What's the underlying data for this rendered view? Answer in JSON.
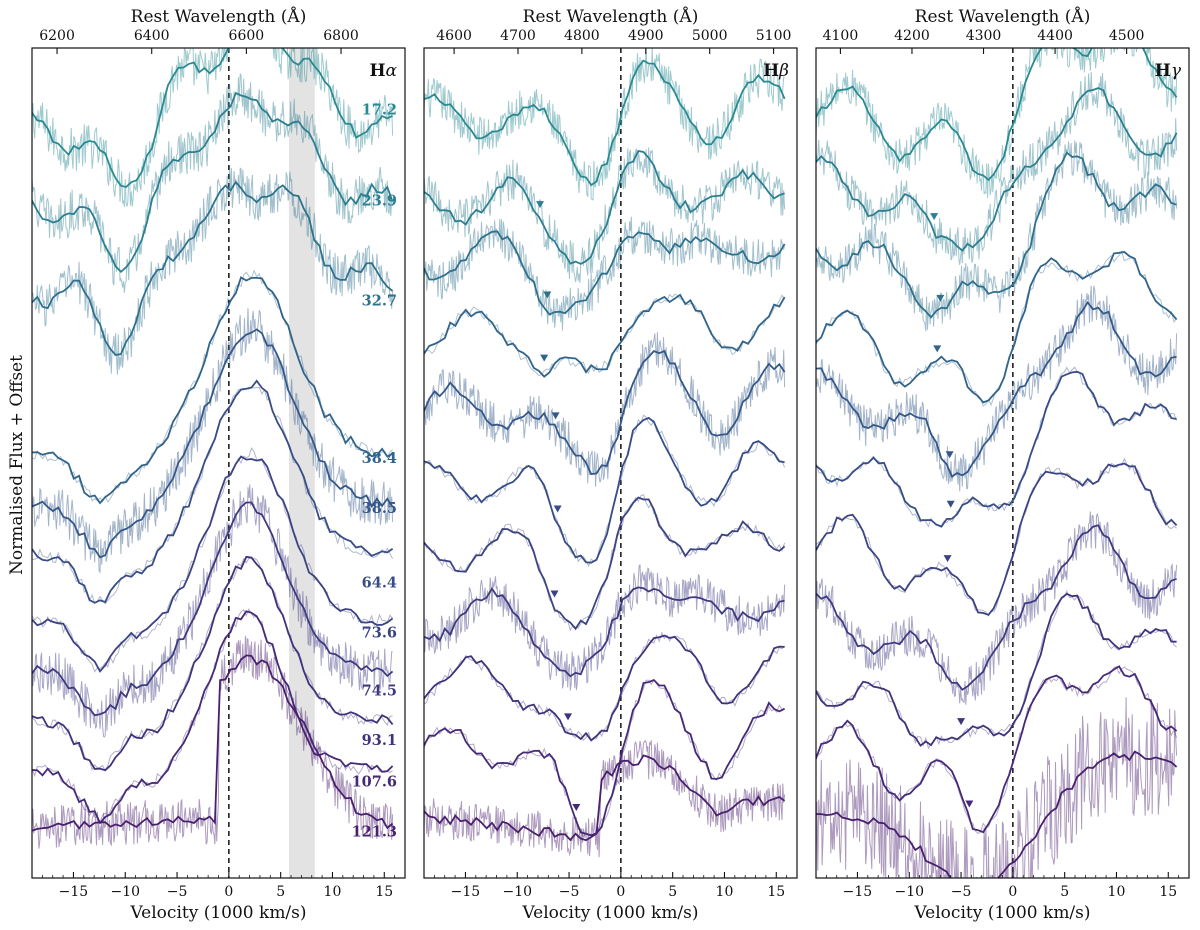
{
  "chart_data": {
    "type": "line",
    "ylabel": "Normalised Flux + Offset",
    "xlabel": "Velocity (1000 km/s)",
    "top_xlabel": "Rest Wavelength (Å)",
    "epochs": [
      "17.2",
      "23.9",
      "32.7",
      "38.4",
      "38.5",
      "64.4",
      "73.6",
      "74.5",
      "93.1",
      "107.6",
      "121.3"
    ],
    "epoch_colors": [
      "#2a8a92",
      "#2c7f90",
      "#2e718d",
      "#31648b",
      "#345889",
      "#374d86",
      "#3b4383",
      "#3f3a80",
      "#41327c",
      "#452a77",
      "#4a1f6e"
    ],
    "panels": [
      {
        "name": "Hα",
        "line": "H",
        "greek": "α",
        "xlim": [
          -19,
          17
        ],
        "x_ticks": [
          -15,
          -10,
          -5,
          0,
          5,
          10,
          15
        ],
        "top_ticks": [
          6200,
          6400,
          6600,
          6800
        ],
        "rest_wavelength": 6563,
        "shaded_band": [
          5.8,
          8.3
        ],
        "absorption_markers": []
      },
      {
        "name": "Hβ",
        "line": "H",
        "greek": "β",
        "xlim": [
          -19,
          17
        ],
        "x_ticks": [
          -15,
          -10,
          -5,
          0,
          5,
          10,
          15
        ],
        "top_ticks": [
          4600,
          4700,
          4800,
          4900,
          5000,
          5100
        ],
        "rest_wavelength": 4861,
        "absorption_markers": [
          {
            "epoch": "23.9",
            "velocity": -7.8
          },
          {
            "epoch": "32.7",
            "velocity": -7.1
          },
          {
            "epoch": "38.4",
            "velocity": -7.4
          },
          {
            "epoch": "38.5",
            "velocity": -6.3
          },
          {
            "epoch": "64.4",
            "velocity": -6.1
          },
          {
            "epoch": "73.6",
            "velocity": -6.4
          },
          {
            "epoch": "93.1",
            "velocity": -5.1
          },
          {
            "epoch": "107.6",
            "velocity": -4.3
          }
        ]
      },
      {
        "name": "Hγ",
        "line": "H",
        "greek": "γ",
        "xlim": [
          -19,
          17
        ],
        "x_ticks": [
          -15,
          -10,
          -5,
          0,
          5,
          10,
          15
        ],
        "top_ticks": [
          4100,
          4200,
          4300,
          4400,
          4500
        ],
        "rest_wavelength": 4341,
        "absorption_markers": [
          {
            "epoch": "23.9",
            "velocity": -7.6
          },
          {
            "epoch": "32.7",
            "velocity": -7.0
          },
          {
            "epoch": "38.4",
            "velocity": -7.3
          },
          {
            "epoch": "38.5",
            "velocity": -6.1
          },
          {
            "epoch": "64.4",
            "velocity": -6.0
          },
          {
            "epoch": "73.6",
            "velocity": -6.3
          },
          {
            "epoch": "93.1",
            "velocity": -5.0
          },
          {
            "epoch": "107.6",
            "velocity": -4.2
          }
        ]
      }
    ]
  }
}
